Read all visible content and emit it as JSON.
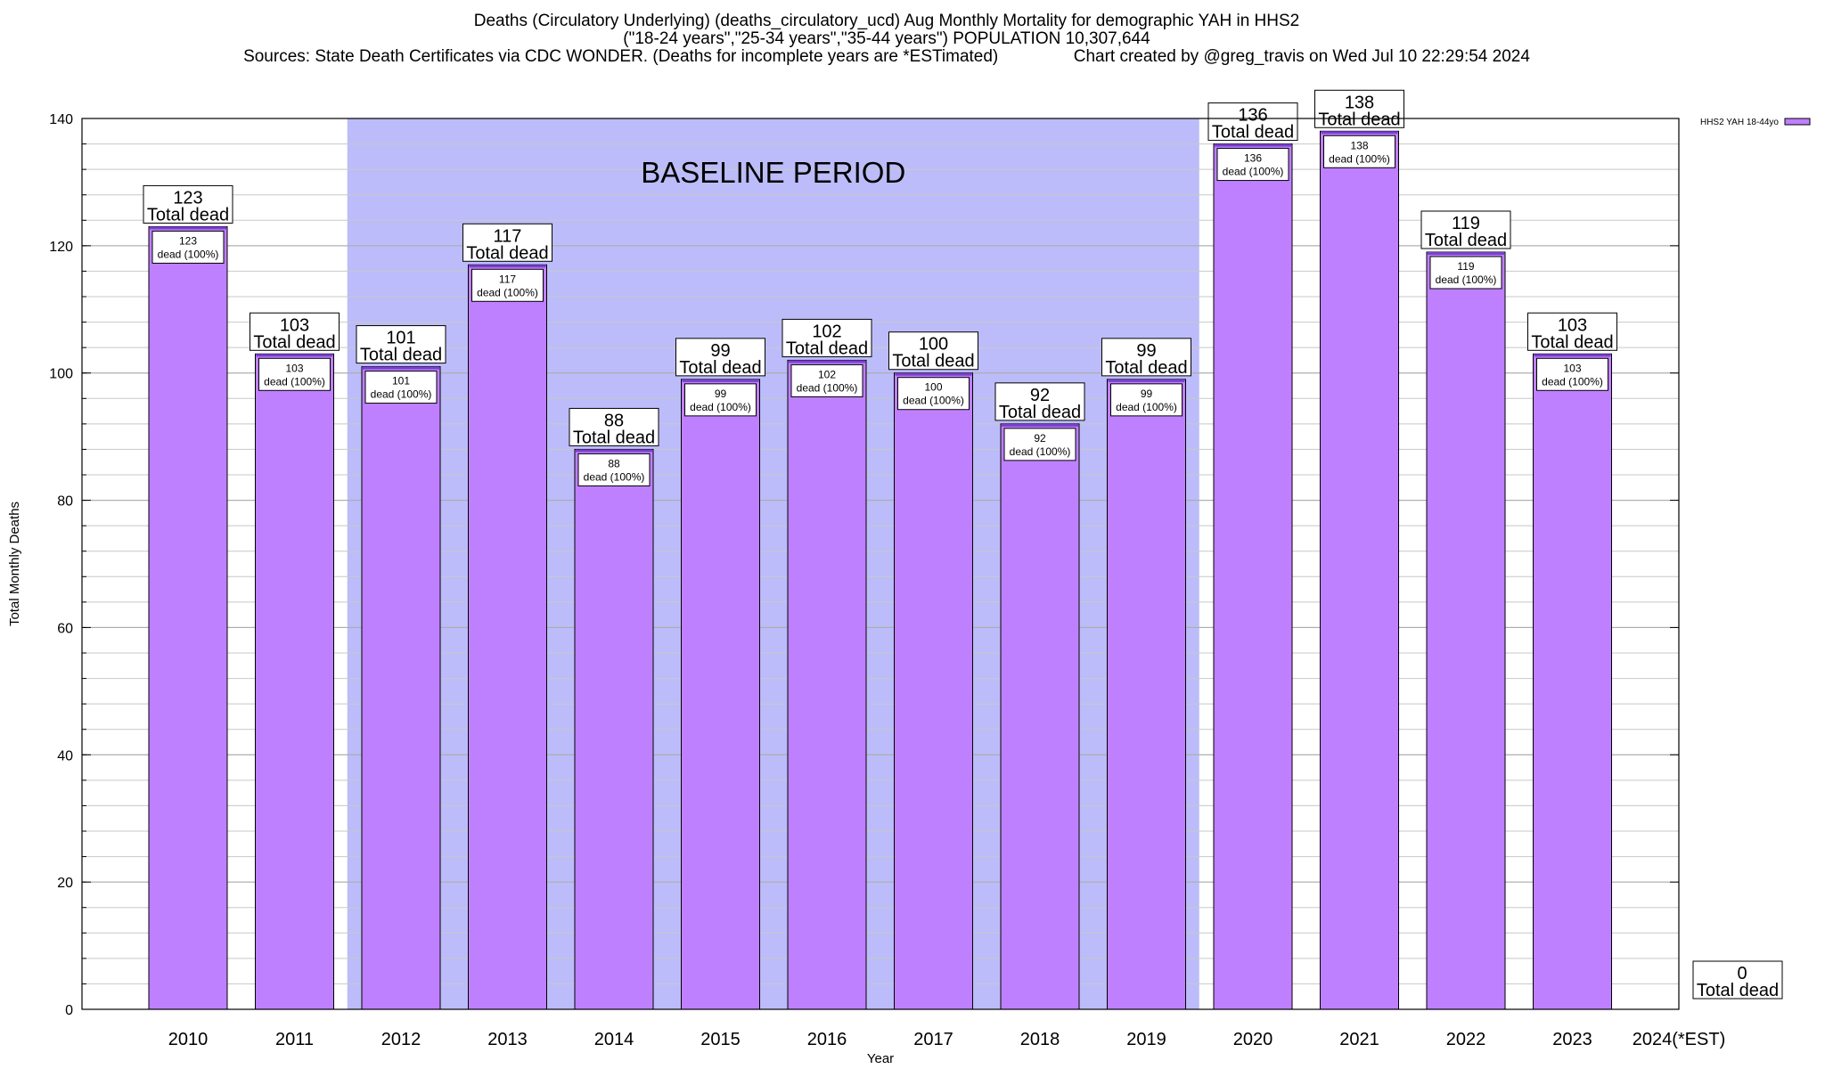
{
  "header": {
    "title_line1": "Deaths (Circulatory Underlying) (deaths_circulatory_ucd) Aug Monthly Mortality for demographic YAH in HHS2",
    "title_line2": "(\"18-24 years\",\"25-34 years\",\"35-44 years\") POPULATION 10,307,644",
    "title_line3": "Sources: State Death Certificates via CDC WONDER. (Deaths for incomplete years are *ESTimated)                Chart created by @greg_travis on Wed Jul 10 22:29:54 2024"
  },
  "chart_data": {
    "type": "bar",
    "xlabel": "Year",
    "ylabel": "Total Monthly Deaths",
    "ylim": [
      0,
      140
    ],
    "y_major_ticks": [
      0,
      20,
      40,
      60,
      80,
      100,
      120,
      140
    ],
    "y_minor_step": 4,
    "grid": true,
    "categories": [
      "2010",
      "2011",
      "2012",
      "2013",
      "2014",
      "2015",
      "2016",
      "2017",
      "2018",
      "2019",
      "2020",
      "2021",
      "2022",
      "2023",
      "2024(*EST)"
    ],
    "series": [
      {
        "name": "HHS2 YAH 18-44yo",
        "color": "#bf80ff",
        "values": [
          123,
          103,
          101,
          117,
          88,
          99,
          102,
          100,
          92,
          99,
          136,
          138,
          119,
          103,
          0
        ]
      }
    ],
    "total_label": "Total dead",
    "inner_label": "dead (100%)",
    "annotation": "BASELINE PERIOD",
    "baseline_range": [
      "2012",
      "2019"
    ],
    "baseline_color": "#bcbcfa",
    "legend_position": "top-right"
  }
}
